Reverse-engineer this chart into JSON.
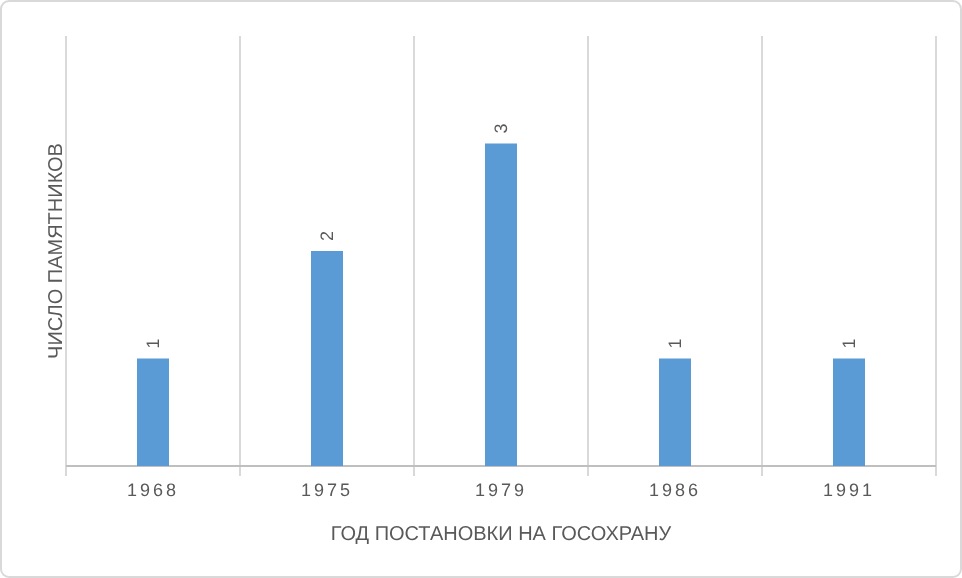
{
  "chart_data": {
    "type": "bar",
    "xlabel": "ГОД ПОСТАНОВКИ НА ГОСОХРАНУ",
    "ylabel": "ЧИСЛО ПАМЯТНИКОВ",
    "categories": [
      "1968",
      "1975",
      "1979",
      "1986",
      "1991"
    ],
    "values": [
      1,
      2,
      3,
      1,
      1
    ],
    "color": "#5b9bd5",
    "data_labels": true,
    "grid": "x"
  }
}
